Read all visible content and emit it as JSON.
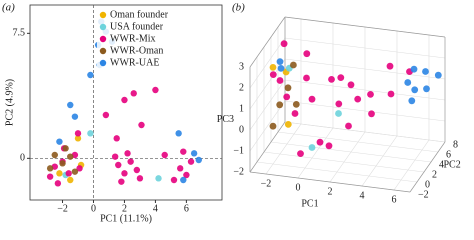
{
  "chart_data": [
    {
      "type": "scatter",
      "panel_label": "(a)",
      "xlabel": "PC1 (11.1%)",
      "ylabel": "PC2 (4.9%)",
      "xlim": [
        -4.1,
        8.3
      ],
      "ylim": [
        -2.5,
        9.2
      ],
      "xticks": [
        {
          "value": -2,
          "label": "−2"
        },
        0,
        2,
        4,
        6
      ],
      "yticks": [
        0,
        7.5
      ],
      "legend": "upper center",
      "series": [
        {
          "name": "Oman founder",
          "color": "#f0b400",
          "x": [
            -1.5,
            -1.0,
            -2.2,
            -0.8
          ],
          "y": [
            -1.3,
            1.2,
            -0.9,
            -0.4
          ]
        },
        {
          "name": "USA founder",
          "color": "#6dd3dc",
          "x": [
            -0.2,
            -1.8,
            4.2
          ],
          "y": [
            1.5,
            -1.0,
            -1.2
          ]
        },
        {
          "name": "WWR-Mix",
          "color": "#e5007d",
          "x": [
            -2.5,
            -2.0,
            -1.6,
            -1.2,
            -2.8,
            -1.9,
            -0.9,
            -2.3,
            1.6,
            2.0,
            2.4,
            1.8,
            2.8,
            2.2,
            1.4,
            3.0,
            5.6,
            6.0,
            6.3,
            5.2,
            5.8,
            2.0,
            4.0,
            3.1,
            1.5,
            -1.0,
            2.6,
            0.8,
            4.6
          ],
          "y": [
            -0.5,
            -0.2,
            -0.9,
            0.2,
            -1.1,
            0.6,
            -0.6,
            -1.5,
            -0.4,
            -0.9,
            -0.2,
            -1.4,
            -0.7,
            0.3,
            0.1,
            -1.2,
            -0.6,
            -1.0,
            -0.2,
            -1.3,
            0.4,
            3.5,
            4.1,
            2.0,
            1.2,
            1.5,
            3.9,
            2.6,
            0.2
          ]
        },
        {
          "name": "WWR-Oman",
          "color": "#8c5a1e",
          "x": [
            -2.5,
            -2.0,
            -1.5,
            -2.8,
            -1.8,
            -1.2
          ],
          "y": [
            0.2,
            -0.3,
            0.1,
            -0.6,
            0.6,
            -0.8
          ]
        },
        {
          "name": "WWR-UAE",
          "color": "#2b85e4",
          "x": [
            0.5,
            0.8,
            1.2,
            0.3,
            0.4,
            -0.2,
            -1.5,
            -1.2,
            5.5,
            6.5,
            6.8,
            5.8,
            -2.2
          ],
          "y": [
            8.2,
            7.6,
            7.0,
            6.8,
            5.6,
            5.0,
            3.2,
            2.5,
            1.5,
            0.3,
            -0.1,
            -1.3,
            1.0
          ]
        }
      ]
    },
    {
      "type": "scatter3d",
      "panel_label": "(b)",
      "xlabel": "PC1",
      "ylabel": "PC2",
      "zlabel": "PC3",
      "xlim": [
        -3,
        7
      ],
      "ylim": [
        -2,
        8
      ],
      "zlim": [
        -2,
        3
      ],
      "xticks": [
        {
          "value": -2,
          "label": "−2"
        },
        0,
        2,
        4,
        6
      ],
      "yticks": [
        {
          "value": -2,
          "label": "−2"
        },
        0,
        2,
        4,
        6,
        8
      ],
      "zticks": [
        {
          "value": -2,
          "label": "−2"
        },
        {
          "value": -1,
          "label": "−1"
        },
        0,
        1,
        2,
        3
      ],
      "series": [
        {
          "color": "#f0b400",
          "x": [
            -2,
            -1.4,
            -1.7
          ],
          "y": [
            0,
            1,
            3
          ],
          "z": [
            2.6,
            2.2,
            -0.8
          ]
        },
        {
          "color": "#6dd3dc",
          "x": [
            0,
            -1.2,
            1
          ],
          "y": [
            2,
            1,
            5
          ],
          "z": [
            -1.5,
            2.4,
            -0.5
          ]
        },
        {
          "color": "#e5007d",
          "x": [
            -2,
            -1.8,
            -1.5,
            -2.2,
            -1,
            0,
            1,
            2,
            3,
            4,
            2.5,
            1.5,
            0.5,
            3.5,
            -1.2,
            -2.4,
            4.5,
            5,
            0.8,
            2.2,
            -0.5,
            1.8
          ],
          "y": [
            2,
            3,
            4,
            1,
            5,
            2,
            3,
            4,
            5,
            6,
            1,
            0,
            2,
            3,
            6,
            5,
            4,
            7,
            6,
            5,
            1,
            2
          ],
          "z": [
            1.5,
            0.5,
            -0.5,
            2.0,
            1.0,
            0.8,
            1.6,
            1.2,
            0.6,
            1.8,
            0,
            -0.8,
            -1.2,
            0.2,
            1.9,
            2.5,
            1.0,
            1.4,
            -0.3,
            0.3,
            -1.6,
            2.0
          ]
        },
        {
          "color": "#8c5a1e",
          "x": [
            -1.8,
            -1.5,
            -2,
            -1.2,
            -1.6
          ],
          "y": [
            1,
            2,
            0,
            3,
            4
          ],
          "z": [
            0.6,
            1.2,
            -0.2,
            0.2,
            1.8
          ]
        },
        {
          "color": "#2b85e4",
          "x": [
            5.5,
            6,
            6.5,
            5,
            6.2,
            -2,
            -1.5,
            5.8,
            6.8
          ],
          "y": [
            6,
            7,
            5,
            6.5,
            3,
            2,
            0,
            4,
            7
          ],
          "z": [
            1.8,
            1.5,
            1.2,
            1.0,
            1.6,
            2.4,
            2.6,
            0.8,
            1.4
          ]
        }
      ]
    }
  ]
}
